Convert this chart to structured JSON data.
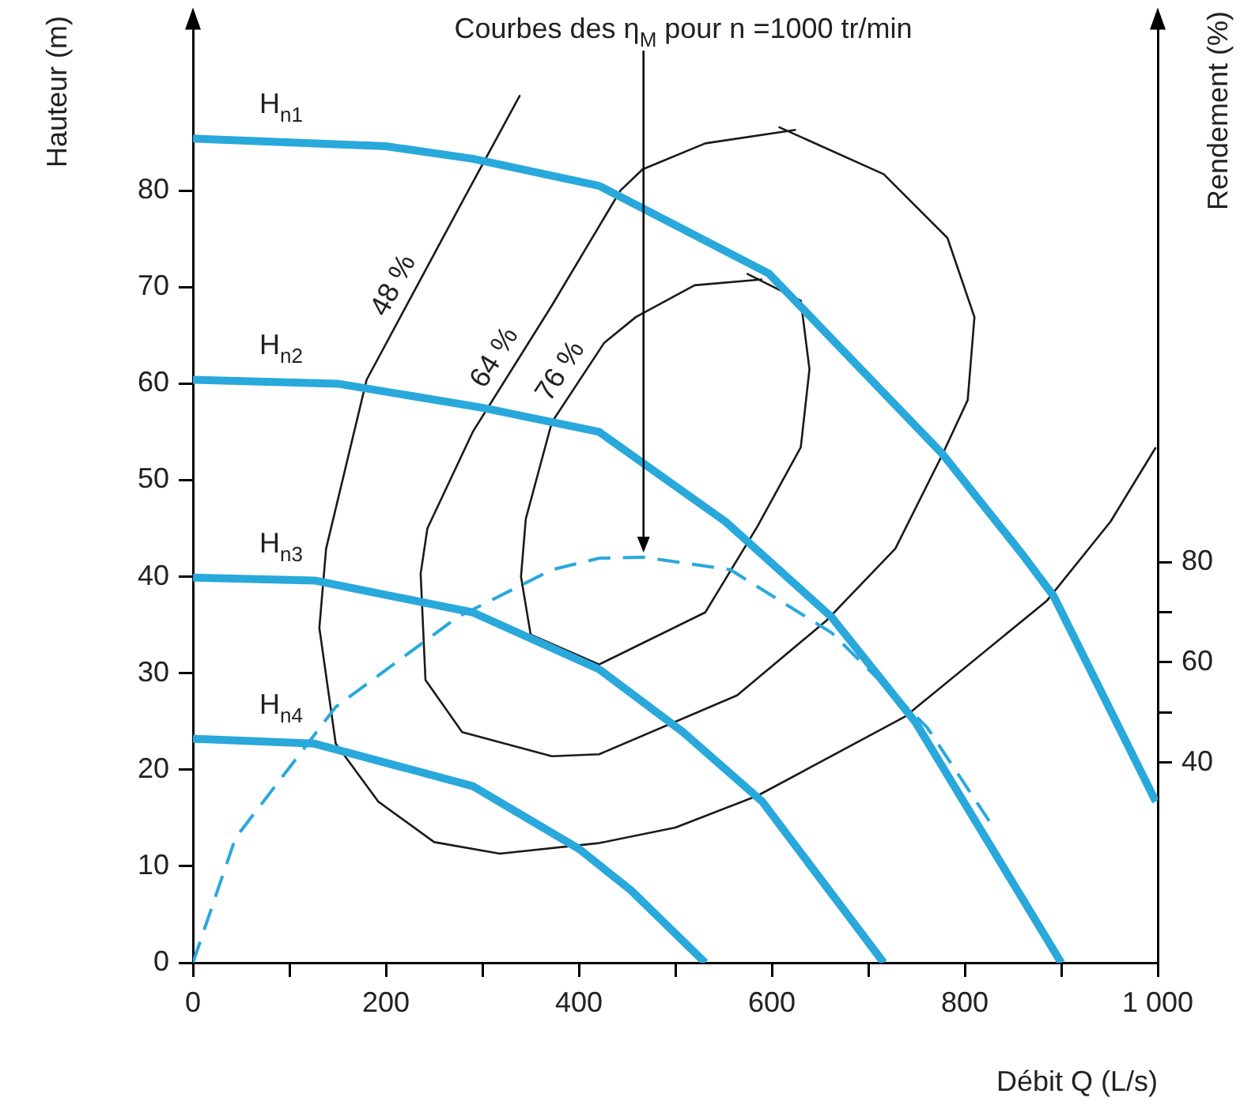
{
  "chart_data": {
    "type": "line",
    "xlabel": "Débit Q (L/s)",
    "ylabel": "Hauteur (m)",
    "y2label": "Rendement (%)",
    "annotations": [
      {
        "text": "Courbes des η$_{M}$ pour n =1000 tr/min",
        "x": 467,
        "y": 42.5
      }
    ],
    "xlim": [
      0,
      1000
    ],
    "xticks": [
      0,
      {
        "value": 100,
        "label": null
      },
      200,
      {
        "value": 300,
        "label": null
      },
      400,
      {
        "value": 500,
        "label": null
      },
      600,
      {
        "value": 700,
        "label": null
      },
      800,
      {
        "value": 900,
        "label": null
      },
      {
        "value": 1000,
        "label": "1 000"
      }
    ],
    "ylim": [
      0,
      97
    ],
    "yticks": [
      0,
      10,
      20,
      30,
      40,
      50,
      60,
      70,
      80
    ],
    "y2lim": [
      0,
      187
    ],
    "y2ticks": [
      40,
      {
        "value": 50,
        "label": null
      },
      60,
      {
        "value": 70,
        "label": null
      },
      80
    ],
    "marker": "none",
    "series": [
      {
        "name": "H$_{n1}$",
        "color": "#29a8dc",
        "line_style": "solid",
        "x": [
          0,
          200,
          290,
          421,
          597,
          777,
          859,
          892,
          998
        ],
        "values": [
          85.4,
          84.6,
          83.3,
          80.5,
          71.4,
          52.7,
          42.4,
          38.0,
          16.7
        ]
      },
      {
        "name": "H$_{n2}$",
        "color": "#29a8dc",
        "line_style": "solid",
        "x": [
          0,
          150,
          300,
          421,
          552,
          662,
          749,
          900
        ],
        "values": [
          60.4,
          60,
          57.5,
          55,
          45.7,
          35.8,
          24.9,
          0
        ]
      },
      {
        "name": "H$_{n3}$",
        "color": "#29a8dc",
        "line_style": "solid",
        "x": [
          0,
          126,
          290,
          421,
          508,
          590,
          716
        ],
        "values": [
          39.9,
          39.6,
          36.3,
          30.4,
          23.9,
          16.7,
          0
        ]
      },
      {
        "name": "H$_{n4}$",
        "color": "#29a8dc",
        "line_style": "solid",
        "x": [
          0,
          126,
          290,
          400,
          454,
          531
        ],
        "values": [
          23.2,
          22.7,
          18.3,
          11.8,
          7.5,
          0
        ]
      },
      {
        "color": "#29a8dc",
        "line_style": "dashed",
        "axis": "y2",
        "x": [
          0,
          44,
          148,
          274,
          372,
          421,
          467,
          557,
          662,
          761,
          826
        ],
        "values": [
          0,
          24.9,
          51.1,
          69,
          78.5,
          80.8,
          81,
          78.5,
          65.9,
          47,
          28.1
        ]
      },
      {
        "name": "48 %",
        "color": "#1a1a1a",
        "line_style": "solid",
        "x": [
          339,
          274,
          180,
          138,
          131,
          148,
          192,
          250,
          318,
          421,
          500,
          585,
          738,
          885,
          951,
          998
        ],
        "values": [
          89.9,
          77.9,
          60.4,
          42.9,
          34.7,
          22.7,
          16.7,
          12.5,
          11.3,
          12.4,
          14,
          17.3,
          25.5,
          37.5,
          45.7,
          53.4
        ]
      },
      {
        "name": "64 %",
        "color": "#1a1a1a",
        "line_style": "solid",
        "x": [
          607,
          716,
          782,
          810,
          803,
          777,
          728,
          656,
          564,
          421,
          372,
          279,
          241,
          236,
          243,
          290,
          372,
          443,
          466,
          531,
          625
        ],
        "values": [
          86.6,
          81.7,
          75.1,
          66.9,
          58.3,
          52.7,
          42.9,
          35.4,
          27.7,
          21.6,
          21.4,
          23.9,
          29.3,
          40.3,
          45,
          55,
          68.1,
          80,
          82.2,
          84.9,
          86.3
        ]
      },
      {
        "name": "76 %",
        "color": "#1a1a1a",
        "line_style": "solid",
        "x": [
          574,
          630,
          639,
          630,
          585,
          531,
          421,
          350,
          340,
          345,
          372,
          426,
          459,
          520,
          590
        ],
        "values": [
          71.4,
          68.6,
          61.5,
          53.4,
          45.2,
          36.3,
          30.9,
          34,
          40,
          46,
          56,
          64.2,
          66.9,
          70.2,
          70.8
        ]
      }
    ]
  }
}
